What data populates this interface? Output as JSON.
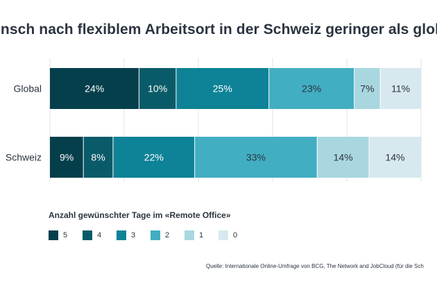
{
  "chart_data": {
    "type": "bar",
    "orientation": "horizontal",
    "stacked": true,
    "title": "unsch nach flexiblem Arbeitsort in der Schweiz geringer als glob",
    "categories": [
      "Global",
      "Schweiz"
    ],
    "value_unit": "%",
    "series": [
      {
        "name": "5",
        "values": [
          24,
          9
        ],
        "color": "#053f4c"
      },
      {
        "name": "4",
        "values": [
          10,
          8
        ],
        "color": "#0a5b69"
      },
      {
        "name": "3",
        "values": [
          25,
          22
        ],
        "color": "#0e8296"
      },
      {
        "name": "2",
        "values": [
          23,
          33
        ],
        "color": "#42aec2"
      },
      {
        "name": "1",
        "values": [
          7,
          14
        ],
        "color": "#a9d7e0"
      },
      {
        "name": "0",
        "values": [
          11,
          14
        ],
        "color": "#d7e9ef"
      }
    ],
    "data_labels": [
      [
        "24%",
        "10%",
        "25%",
        "23%",
        "7%",
        "11%"
      ],
      [
        "9%",
        "8%",
        "22%",
        "33%",
        "14%",
        "14%"
      ]
    ],
    "legend_title": "Anzahl gewünschter Tage im «Remote Office»",
    "legend_position": "bottom-left",
    "grid": true
  },
  "source": "Quelle: Internationale Online-Umfrage von BCG, The Network and JobCloud (für die Sch"
}
